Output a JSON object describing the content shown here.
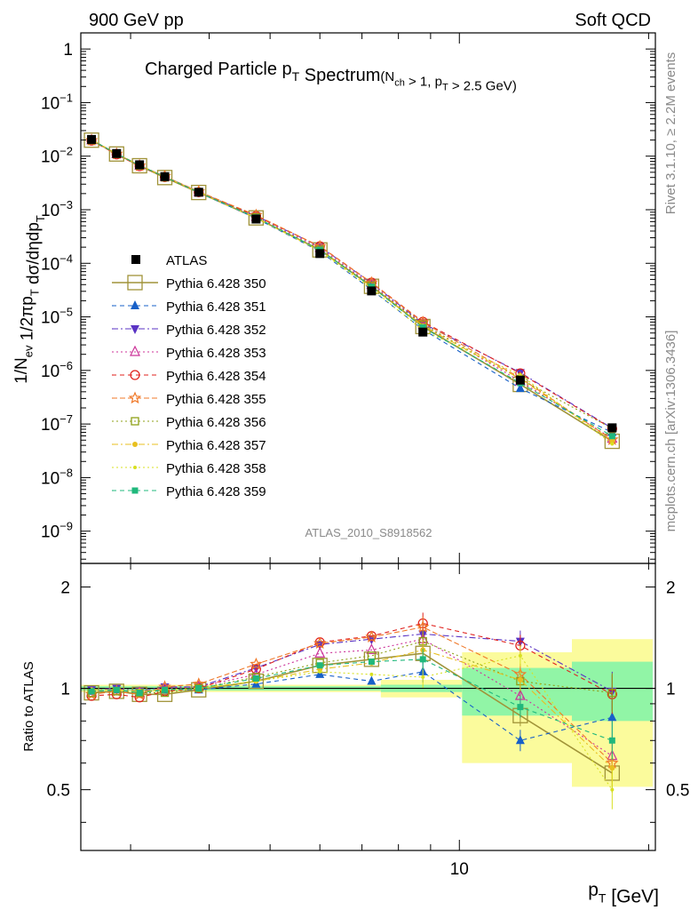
{
  "header": {
    "left": "900 GeV pp",
    "right": "Soft QCD"
  },
  "side_labels": {
    "top": "Rivet 3.1.10, ≥ 2.2M events",
    "bottom": "mcplots.cern.ch [arXiv:1306.3436]"
  },
  "chart_data": {
    "type": "line",
    "title": "Charged Particle p_T Spectrum",
    "title_qualifier": "(N_ch > 1, p_T > 2.5 GeV)",
    "analysis_id": "ATLAS_2010_S8918562",
    "ylabel": "1/N_ev 1/2πp_T dσ/dηdp_T",
    "ratio_ylabel": "Ratio to ATLAS",
    "xlabel": "p_T [GeV]",
    "x_scale": "log",
    "y_scale": "log",
    "xlim": [
      2.5,
      20.5
    ],
    "ylim": [
      2.5e-10,
      2
    ],
    "ratio_ylim": [
      0.33,
      2.35
    ],
    "main_y_ticks": [
      {
        "value": 1,
        "label": "1"
      },
      {
        "value": 0.1,
        "label": "10^-1"
      },
      {
        "value": 0.01,
        "label": "10^-2"
      },
      {
        "value": 0.001,
        "label": "10^-3"
      },
      {
        "value": 0.0001,
        "label": "10^-4"
      },
      {
        "value": 1e-05,
        "label": "10^-5"
      },
      {
        "value": 1e-06,
        "label": "10^-6"
      },
      {
        "value": 1e-07,
        "label": "10^-7"
      },
      {
        "value": 1e-08,
        "label": "10^-8"
      },
      {
        "value": 1e-09,
        "label": "10^-9"
      }
    ],
    "ratio_y_ticks": [
      {
        "value": 0.5,
        "label": "0.5"
      },
      {
        "value": 1,
        "label": "1"
      },
      {
        "value": 2,
        "label": "2"
      }
    ],
    "x_ticks": [
      {
        "value": 10,
        "label": "10"
      }
    ],
    "legend_position": "center-left",
    "band_colors": {
      "stat": "#91f5a6",
      "total": "#fbfb9c"
    },
    "ratio_bands": [
      {
        "xlo": 2.5,
        "xhi": 7.5,
        "stat": [
          0.985,
          1.015
        ],
        "total": [
          0.975,
          1.025
        ]
      },
      {
        "xlo": 7.5,
        "xhi": 10.1,
        "stat": [
          0.975,
          1.025
        ],
        "total": [
          0.94,
          1.06
        ]
      },
      {
        "xlo": 10.1,
        "xhi": 15.1,
        "stat": [
          0.83,
          1.15
        ],
        "total": [
          0.6,
          1.28
        ]
      },
      {
        "xlo": 15.1,
        "xhi": 20.3,
        "stat": [
          0.8,
          1.2
        ],
        "total": [
          0.51,
          1.4
        ]
      }
    ],
    "x": [
      2.6,
      2.85,
      3.1,
      3.4,
      3.85,
      4.75,
      6.0,
      7.25,
      8.75,
      12.5,
      17.5
    ],
    "data": {
      "name": "ATLAS",
      "color": "#000000",
      "values": [
        0.0205,
        0.0112,
        0.0069,
        0.00415,
        0.00212,
        0.00067,
        0.000152,
        3.05e-05,
        5.2e-06,
        6.6e-07,
        8.5e-08
      ]
    },
    "series": [
      {
        "name": "Pythia 6.428 350",
        "color": "#a09338",
        "dash": "",
        "marker": "square-open",
        "size": 10,
        "ratios": [
          0.97,
          0.98,
          0.96,
          0.96,
          0.99,
          1.05,
          1.17,
          1.22,
          1.27,
          0.83,
          0.56
        ]
      },
      {
        "name": "Pythia 6.428 351",
        "color": "#1760c8",
        "dash": "5,4",
        "marker": "triangle-up",
        "size": 5,
        "ratios": [
          0.98,
          0.99,
          0.97,
          0.99,
          0.99,
          1.03,
          1.1,
          1.05,
          1.12,
          0.7,
          0.82
        ]
      },
      {
        "name": "Pythia 6.428 352",
        "color": "#5a33c4",
        "dash": "7,3,2,3",
        "marker": "triangle-down",
        "size": 5,
        "ratios": [
          0.99,
          1.0,
          0.98,
          1.01,
          1.01,
          1.15,
          1.35,
          1.4,
          1.45,
          1.38,
          0.98
        ]
      },
      {
        "name": "Pythia 6.428 353",
        "color": "#cc3399",
        "dash": "2,3",
        "marker": "triangle-open",
        "size": 5,
        "ratios": [
          0.97,
          0.98,
          0.97,
          1.0,
          1.01,
          1.1,
          1.27,
          1.3,
          1.4,
          0.95,
          0.63
        ]
      },
      {
        "name": "Pythia 6.428 354",
        "color": "#e0201c",
        "dash": "5,4",
        "marker": "circle-open",
        "size": 5,
        "ratios": [
          0.95,
          0.96,
          0.94,
          0.98,
          1.0,
          1.14,
          1.37,
          1.43,
          1.56,
          1.34,
          0.96
        ]
      },
      {
        "name": "Pythia 6.428 355",
        "color": "#f07828",
        "dash": "6,3",
        "marker": "star-open",
        "size": 6,
        "ratios": [
          0.96,
          0.98,
          0.96,
          1.01,
          1.03,
          1.18,
          1.36,
          1.42,
          1.52,
          1.1,
          0.6
        ]
      },
      {
        "name": "Pythia 6.428 356",
        "color": "#8fa018",
        "dash": "2,3",
        "marker": "square-open",
        "size": 5,
        "ratios": [
          0.97,
          0.98,
          0.97,
          0.97,
          1.0,
          1.08,
          1.19,
          1.25,
          1.38,
          1.05,
          0.97
        ]
      },
      {
        "name": "Pythia 6.428 357",
        "color": "#e8c020",
        "dash": "7,3,2,3",
        "marker": "dot",
        "size": 3,
        "ratios": [
          0.99,
          0.99,
          0.98,
          0.99,
          1.0,
          1.05,
          1.14,
          1.19,
          1.3,
          1.06,
          0.58
        ]
      },
      {
        "name": "Pythia 6.428 358",
        "color": "#d8e020",
        "dash": "2,3",
        "marker": "dot",
        "size": 2,
        "ratios": [
          0.99,
          0.99,
          0.98,
          0.99,
          1.0,
          1.05,
          1.12,
          1.1,
          1.08,
          1.25,
          0.5
        ]
      },
      {
        "name": "Pythia 6.428 359",
        "color": "#20b87c",
        "dash": "5,4",
        "marker": "square",
        "size": 3.5,
        "ratios": [
          0.98,
          0.99,
          0.97,
          0.99,
          1.0,
          1.07,
          1.17,
          1.2,
          1.22,
          0.88,
          0.7
        ]
      }
    ]
  }
}
